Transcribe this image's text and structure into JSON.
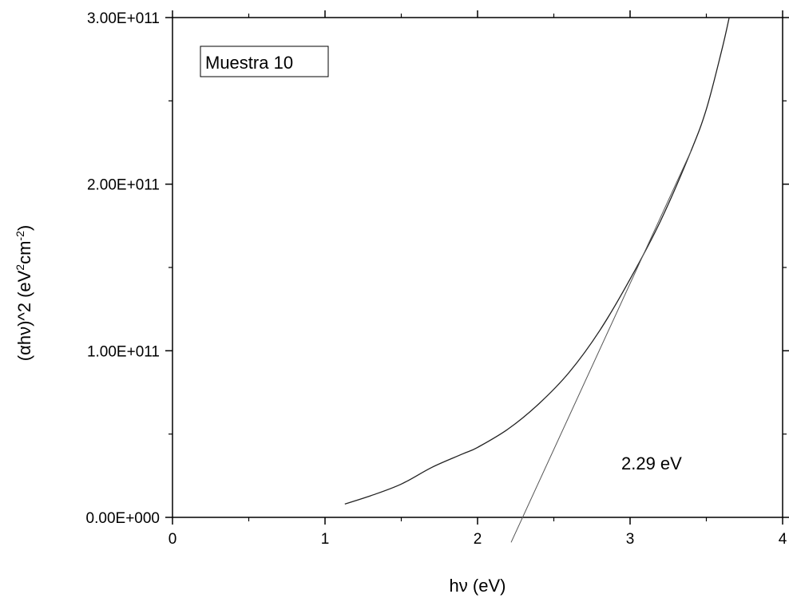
{
  "chart_data": {
    "type": "line",
    "title": "",
    "xlabel": "hν (eV)",
    "ylabel": "(αhν)^2 (eV²cm⁻²)",
    "ylabel_parts": {
      "main": "(αhν)^2 (eV",
      "exp1": "2",
      "mid": "cm",
      "exp2": "-2",
      "end": ")"
    },
    "xlim": [
      0,
      4
    ],
    "ylim": [
      0,
      300000000000.0
    ],
    "x_ticks": [
      0,
      1,
      2,
      3,
      4
    ],
    "x_tick_labels": [
      "0",
      "1",
      "2",
      "3",
      "4"
    ],
    "y_ticks": [
      0,
      100000000000.0,
      200000000000.0,
      300000000000.0
    ],
    "y_tick_labels": [
      "0.00E+000",
      "1.00E+011",
      "2.00E+011",
      "3.00E+011"
    ],
    "grid": false,
    "series": [
      {
        "kind": "measured",
        "x": [
          1.13,
          1.3,
          1.5,
          1.7,
          1.9,
          2.0,
          2.2,
          2.4,
          2.6,
          2.8,
          3.0,
          3.2,
          3.4,
          3.5,
          3.6,
          3.65
        ],
        "y": [
          8000000000.0,
          13000000000.0,
          20000000000.0,
          30000000000.0,
          38000000000.0,
          42000000000.0,
          53000000000.0,
          68000000000.0,
          87000000000.0,
          112000000000.0,
          143000000000.0,
          178000000000.0,
          220000000000.0,
          245000000000.0,
          280000000000.0,
          300000000000.0
        ]
      },
      {
        "kind": "tangent-fit",
        "x": [
          2.22,
          3.4
        ],
        "y": [
          -15000000000.0,
          220000000000.0
        ]
      }
    ],
    "annotations": [
      {
        "text": "Muestra 10",
        "x": 0.2,
        "y": 275000000000.0,
        "boxed": true
      },
      {
        "text": "2.29 eV",
        "x": 2.95,
        "y": 30000000000.0,
        "boxed": false
      }
    ]
  }
}
